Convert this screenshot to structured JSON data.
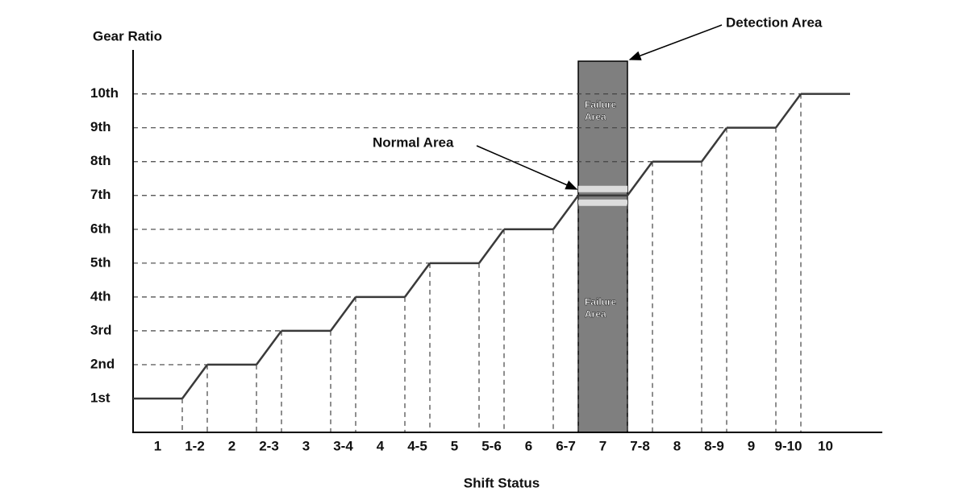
{
  "chart_data": {
    "type": "line",
    "y_label": "Gear Ratio",
    "x_label": "Shift Status",
    "categories": [
      "1",
      "1-2",
      "2",
      "2-3",
      "3",
      "3-4",
      "4",
      "4-5",
      "5",
      "5-6",
      "6",
      "6-7",
      "7",
      "7-8",
      "8",
      "8-9",
      "9",
      "9-10",
      "10"
    ],
    "values": [
      1,
      null,
      2,
      null,
      3,
      null,
      4,
      null,
      5,
      null,
      6,
      null,
      7,
      null,
      8,
      null,
      9,
      null,
      10
    ],
    "color": "#3a3a3a",
    "ylim": [
      0,
      11.3
    ],
    "yticks": [
      {
        "value": 1,
        "label": "1st"
      },
      {
        "value": 2,
        "label": "2nd"
      },
      {
        "value": 3,
        "label": "3rd"
      },
      {
        "value": 4,
        "label": "4th"
      },
      {
        "value": 5,
        "label": "5th"
      },
      {
        "value": 6,
        "label": "6th"
      },
      {
        "value": 7,
        "label": "7th"
      },
      {
        "value": 8,
        "label": "8th"
      },
      {
        "value": 9,
        "label": "9th"
      },
      {
        "value": 10,
        "label": "10th"
      }
    ],
    "grid": true,
    "annotations": {
      "detection_area": "Detection Area",
      "normal_area": "Normal Area",
      "failure_area_upper": [
        "Failure",
        "Area"
      ],
      "failure_area_lower": [
        "Failure",
        "Area"
      ]
    }
  }
}
